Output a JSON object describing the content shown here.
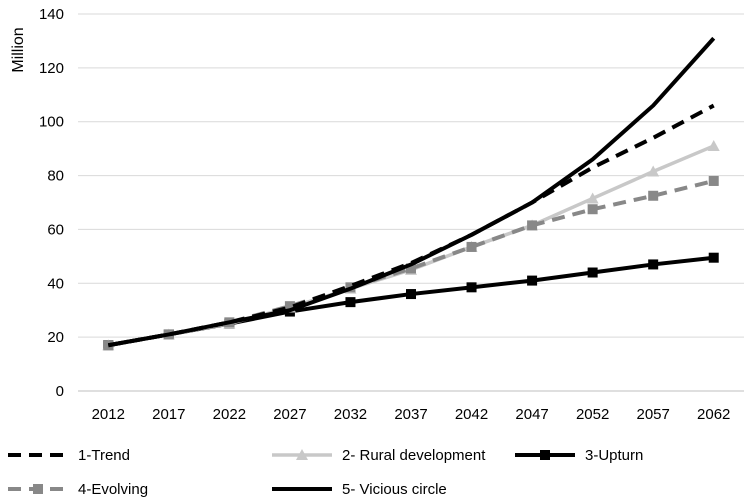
{
  "chart_data": {
    "type": "line",
    "ylabel": "Million",
    "xlabel": "",
    "ylim": [
      0,
      140
    ],
    "yticks": [
      0,
      20,
      40,
      60,
      80,
      100,
      120,
      140
    ],
    "grid": "horizontal",
    "legend_position": "bottom",
    "categories": [
      "2012",
      "2017",
      "2022",
      "2027",
      "2032",
      "2037",
      "2042",
      "2047",
      "2052",
      "2057",
      "2062"
    ],
    "series": [
      {
        "name": "1-Trend",
        "color": "#000000",
        "style": "dashed",
        "marker": "none",
        "values": [
          17,
          21,
          25.5,
          31,
          39,
          47.5,
          58,
          70,
          83,
          94,
          106
        ]
      },
      {
        "name": "2- Rural development",
        "color": "#c8c8c8",
        "style": "solid",
        "marker": "triangle",
        "values": [
          17,
          21,
          25,
          31,
          38,
          45,
          53.5,
          61.5,
          71.5,
          81.5,
          91
        ]
      },
      {
        "name": "3-Upturn",
        "color": "#000000",
        "style": "solid",
        "marker": "square",
        "values": [
          17,
          21,
          25,
          29.5,
          33,
          36,
          38.5,
          41,
          44,
          47,
          49.5
        ]
      },
      {
        "name": "4-Evolving",
        "color": "#888888",
        "style": "dashed",
        "marker": "square",
        "values": [
          17,
          21,
          25.5,
          31.5,
          38.5,
          45.5,
          53.5,
          61.5,
          67.5,
          72.5,
          78
        ]
      },
      {
        "name": "5- Vicious circle",
        "color": "#000000",
        "style": "solid",
        "marker": "none",
        "values": [
          17,
          21,
          25.5,
          30,
          38,
          47,
          58,
          70,
          86,
          106,
          131
        ]
      }
    ]
  }
}
